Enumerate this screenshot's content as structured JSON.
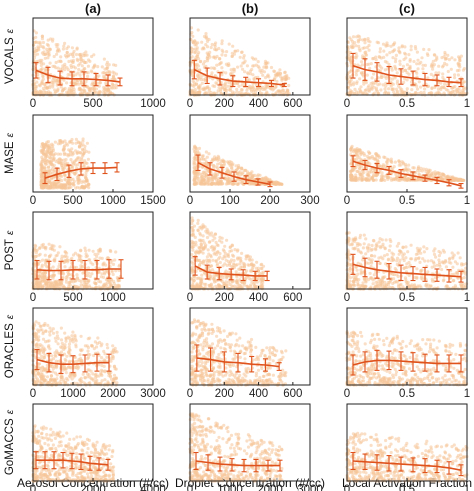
{
  "figure": {
    "column_titles": [
      "(a)",
      "(b)",
      "(c)"
    ],
    "xlabels": [
      "Aerosol Concentration (#/cc)",
      "Droplet Concentration (#/cc)",
      "Local Activation Fraction"
    ],
    "row_labels": [
      "VOCALS",
      "MASE",
      "POST",
      "ORACLES",
      "GoMACCS"
    ],
    "ylabel_symbol": "ε"
  },
  "colors": {
    "scatter": "#f6c597",
    "line": "#e0521c",
    "axis": "#222222"
  },
  "chart_data": [
    {
      "type": "scatter",
      "row": "VOCALS",
      "column": "(a)",
      "xlim": [
        0,
        1000
      ],
      "xticks": [
        0,
        500,
        1000
      ],
      "ylim": [
        0,
        1
      ],
      "scatter_region": {
        "x": [
          0,
          700
        ],
        "y_low_at_start": 0.0,
        "y_high_at_start": 0.85,
        "y_high_at_end": 0.4
      },
      "series": {
        "x": [
          25,
          125,
          225,
          325,
          425,
          525,
          625,
          725
        ],
        "y": [
          0.32,
          0.26,
          0.22,
          0.21,
          0.21,
          0.2,
          0.19,
          0.17
        ],
        "err": [
          0.1,
          0.1,
          0.09,
          0.09,
          0.09,
          0.08,
          0.07,
          0.05
        ]
      }
    },
    {
      "type": "scatter",
      "row": "VOCALS",
      "column": "(b)",
      "xlim": [
        0,
        700
      ],
      "xticks": [
        0,
        200,
        400,
        600
      ],
      "ylim": [
        0,
        1
      ],
      "scatter_region": {
        "x": [
          0,
          580
        ],
        "y_low_at_start": 0.0,
        "y_high_at_start": 0.9,
        "y_high_at_end": 0.3
      },
      "series": {
        "x": [
          25,
          100,
          175,
          250,
          325,
          400,
          475,
          550
        ],
        "y": [
          0.33,
          0.25,
          0.21,
          0.18,
          0.17,
          0.16,
          0.15,
          0.13
        ],
        "err": [
          0.12,
          0.1,
          0.08,
          0.07,
          0.06,
          0.05,
          0.04,
          0.02
        ]
      }
    },
    {
      "type": "scatter",
      "row": "VOCALS",
      "column": "(c)",
      "xlim": [
        0,
        1
      ],
      "xticks": [
        0,
        0.5,
        1
      ],
      "ylim": [
        0,
        1
      ],
      "scatter_region": {
        "x": [
          0,
          1
        ],
        "y_low_at_start": 0.0,
        "y_high_at_start": 0.8,
        "y_high_at_end": 0.5
      },
      "series": {
        "x": [
          0.05,
          0.15,
          0.25,
          0.35,
          0.45,
          0.55,
          0.65,
          0.75,
          0.85,
          0.95
        ],
        "y": [
          0.38,
          0.33,
          0.3,
          0.26,
          0.24,
          0.22,
          0.2,
          0.19,
          0.17,
          0.16
        ],
        "err": [
          0.16,
          0.14,
          0.12,
          0.11,
          0.1,
          0.09,
          0.08,
          0.07,
          0.06,
          0.05
        ]
      }
    },
    {
      "type": "scatter",
      "row": "MASE",
      "column": "(a)",
      "xlim": [
        0,
        1500
      ],
      "xticks": [
        0,
        500,
        1000,
        1500
      ],
      "ylim": [
        0,
        1
      ],
      "scatter_region": {
        "x": [
          100,
          700
        ],
        "y_low_at_start": 0.05,
        "y_high_at_start": 0.65,
        "y_high_at_end": 0.7
      },
      "series": {
        "x": [
          150,
          300,
          450,
          600,
          750,
          900,
          1050
        ],
        "y": [
          0.18,
          0.23,
          0.27,
          0.3,
          0.31,
          0.31,
          0.32
        ],
        "err": [
          0.07,
          0.08,
          0.08,
          0.08,
          0.07,
          0.07,
          0.06
        ]
      }
    },
    {
      "type": "scatter",
      "row": "MASE",
      "column": "(b)",
      "xlim": [
        0,
        300
      ],
      "xticks": [
        0,
        100,
        200,
        300
      ],
      "ylim": [
        0,
        1
      ],
      "scatter_region": {
        "x": [
          10,
          230
        ],
        "y_low_at_start": 0.1,
        "y_high_at_start": 0.6,
        "y_high_at_end": 0.1
      },
      "series": {
        "x": [
          20,
          50,
          80,
          110,
          140,
          170,
          200
        ],
        "y": [
          0.38,
          0.3,
          0.25,
          0.2,
          0.16,
          0.13,
          0.1
        ],
        "err": [
          0.1,
          0.08,
          0.07,
          0.06,
          0.05,
          0.04,
          0.03
        ]
      }
    },
    {
      "type": "scatter",
      "row": "MASE",
      "column": "(c)",
      "xlim": [
        0,
        1
      ],
      "xticks": [
        0,
        0.5,
        1
      ],
      "ylim": [
        0,
        1
      ],
      "scatter_region": {
        "x": [
          0.03,
          0.98
        ],
        "y_low_at_start": 0.15,
        "y_high_at_start": 0.6,
        "y_high_at_end": 0.15
      },
      "series": {
        "x": [
          0.05,
          0.15,
          0.25,
          0.35,
          0.45,
          0.55,
          0.65,
          0.75,
          0.85,
          0.95
        ],
        "y": [
          0.4,
          0.35,
          0.31,
          0.28,
          0.24,
          0.21,
          0.18,
          0.15,
          0.12,
          0.08
        ],
        "err": [
          0.07,
          0.06,
          0.06,
          0.05,
          0.05,
          0.05,
          0.04,
          0.04,
          0.04,
          0.03
        ]
      }
    },
    {
      "type": "scatter",
      "row": "POST",
      "column": "(a)",
      "xlim": [
        0,
        1500
      ],
      "xticks": [
        0,
        500,
        1000
      ],
      "ylim": [
        0,
        1
      ],
      "scatter_region": {
        "x": [
          0,
          1100
        ],
        "y_low_at_start": 0.0,
        "y_high_at_start": 0.6,
        "y_high_at_end": 0.5
      },
      "series": {
        "x": [
          50,
          200,
          350,
          500,
          650,
          800,
          950,
          1100
        ],
        "y": [
          0.25,
          0.24,
          0.24,
          0.25,
          0.25,
          0.25,
          0.26,
          0.26
        ],
        "err": [
          0.12,
          0.12,
          0.12,
          0.12,
          0.12,
          0.12,
          0.12,
          0.12
        ]
      }
    },
    {
      "type": "scatter",
      "row": "POST",
      "column": "(b)",
      "xlim": [
        0,
        700
      ],
      "xticks": [
        0,
        200,
        400,
        600
      ],
      "ylim": [
        0,
        1
      ],
      "scatter_region": {
        "x": [
          10,
          430
        ],
        "y_low_at_start": 0.0,
        "y_high_at_start": 0.95,
        "y_high_at_end": 0.3
      },
      "series": {
        "x": [
          30,
          100,
          170,
          240,
          310,
          380,
          450
        ],
        "y": [
          0.3,
          0.22,
          0.2,
          0.19,
          0.18,
          0.17,
          0.17
        ],
        "err": [
          0.12,
          0.09,
          0.08,
          0.07,
          0.07,
          0.06,
          0.06
        ]
      }
    },
    {
      "type": "scatter",
      "row": "POST",
      "column": "(c)",
      "xlim": [
        0,
        1
      ],
      "xticks": [
        0,
        0.5,
        1
      ],
      "ylim": [
        0,
        1
      ],
      "scatter_region": {
        "x": [
          0,
          1
        ],
        "y_low_at_start": 0.0,
        "y_high_at_start": 0.75,
        "y_high_at_end": 0.45
      },
      "series": {
        "x": [
          0.05,
          0.15,
          0.25,
          0.35,
          0.45,
          0.55,
          0.65,
          0.75,
          0.85,
          0.95
        ],
        "y": [
          0.32,
          0.28,
          0.25,
          0.23,
          0.21,
          0.2,
          0.19,
          0.18,
          0.17,
          0.16
        ],
        "err": [
          0.13,
          0.12,
          0.11,
          0.1,
          0.1,
          0.09,
          0.09,
          0.08,
          0.08,
          0.07
        ]
      }
    },
    {
      "type": "scatter",
      "row": "ORACLES",
      "column": "(a)",
      "xlim": [
        0,
        3000
      ],
      "xticks": [
        0,
        1000,
        2000,
        3000
      ],
      "ylim": [
        0,
        1
      ],
      "scatter_region": {
        "x": [
          0,
          2100
        ],
        "y_low_at_start": 0.0,
        "y_high_at_start": 0.85,
        "y_high_at_end": 0.55
      },
      "series": {
        "x": [
          100,
          400,
          700,
          1000,
          1300,
          1600,
          1900
        ],
        "y": [
          0.33,
          0.29,
          0.27,
          0.27,
          0.28,
          0.29,
          0.29
        ],
        "err": [
          0.13,
          0.12,
          0.12,
          0.11,
          0.11,
          0.11,
          0.11
        ]
      }
    },
    {
      "type": "scatter",
      "row": "ORACLES",
      "column": "(b)",
      "xlim": [
        0,
        700
      ],
      "xticks": [
        0,
        200,
        400,
        600
      ],
      "ylim": [
        0,
        1
      ],
      "scatter_region": {
        "x": [
          10,
          560
        ],
        "y_low_at_start": 0.0,
        "y_high_at_start": 0.9,
        "y_high_at_end": 0.45
      },
      "series": {
        "x": [
          40,
          120,
          200,
          280,
          360,
          440,
          520
        ],
        "y": [
          0.35,
          0.33,
          0.3,
          0.29,
          0.27,
          0.26,
          0.24
        ],
        "err": [
          0.17,
          0.15,
          0.13,
          0.12,
          0.1,
          0.08,
          0.05
        ]
      }
    },
    {
      "type": "scatter",
      "row": "ORACLES",
      "column": "(c)",
      "xlim": [
        0,
        1
      ],
      "xticks": [
        0,
        0.5,
        1
      ],
      "ylim": [
        0,
        1
      ],
      "scatter_region": {
        "x": [
          0,
          1
        ],
        "y_low_at_start": 0.0,
        "y_high_at_start": 0.7,
        "y_high_at_end": 0.55
      },
      "series": {
        "x": [
          0.05,
          0.15,
          0.25,
          0.35,
          0.45,
          0.55,
          0.65,
          0.75,
          0.85,
          0.95
        ],
        "y": [
          0.26,
          0.3,
          0.32,
          0.32,
          0.31,
          0.3,
          0.29,
          0.28,
          0.28,
          0.28
        ],
        "err": [
          0.13,
          0.13,
          0.13,
          0.12,
          0.12,
          0.12,
          0.11,
          0.11,
          0.11,
          0.11
        ]
      }
    },
    {
      "type": "scatter",
      "row": "GoMACCS",
      "column": "(a)",
      "xlim": [
        0,
        4000
      ],
      "xticks": [
        0,
        2000,
        4000
      ],
      "ylim": [
        0,
        1
      ],
      "scatter_region": {
        "x": [
          0,
          2700
        ],
        "y_low_at_start": 0.0,
        "y_high_at_start": 0.75,
        "y_high_at_end": 0.45
      },
      "series": {
        "x": [
          100,
          400,
          700,
          1000,
          1300,
          1600,
          1900,
          2200,
          2500
        ],
        "y": [
          0.27,
          0.27,
          0.27,
          0.27,
          0.26,
          0.25,
          0.23,
          0.22,
          0.21
        ],
        "err": [
          0.11,
          0.11,
          0.11,
          0.1,
          0.1,
          0.1,
          0.09,
          0.08,
          0.07
        ]
      }
    },
    {
      "type": "scatter",
      "row": "GoMACCS",
      "column": "(b)",
      "xlim": [
        0,
        3000
      ],
      "xticks": [
        0,
        1000,
        2000,
        3000
      ],
      "ylim": [
        0,
        1
      ],
      "scatter_region": {
        "x": [
          0,
          2300
        ],
        "y_low_at_start": 0.0,
        "y_high_at_start": 0.9,
        "y_high_at_end": 0.45
      },
      "series": {
        "x": [
          150,
          450,
          750,
          1050,
          1350,
          1650,
          1950,
          2250
        ],
        "y": [
          0.26,
          0.24,
          0.22,
          0.21,
          0.2,
          0.2,
          0.2,
          0.2
        ],
        "err": [
          0.11,
          0.1,
          0.09,
          0.08,
          0.08,
          0.08,
          0.07,
          0.07
        ]
      }
    },
    {
      "type": "scatter",
      "row": "GoMACCS",
      "column": "(c)",
      "xlim": [
        0,
        1
      ],
      "xticks": [
        0,
        0.5,
        1
      ],
      "ylim": [
        0,
        1
      ],
      "scatter_region": {
        "x": [
          0,
          1
        ],
        "y_low_at_start": 0.0,
        "y_high_at_start": 0.65,
        "y_high_at_end": 0.45
      },
      "series": {
        "x": [
          0.05,
          0.15,
          0.25,
          0.35,
          0.45,
          0.55,
          0.65,
          0.75,
          0.85,
          0.95
        ],
        "y": [
          0.26,
          0.25,
          0.24,
          0.23,
          0.22,
          0.21,
          0.2,
          0.19,
          0.17,
          0.14
        ],
        "err": [
          0.11,
          0.1,
          0.1,
          0.1,
          0.09,
          0.09,
          0.09,
          0.08,
          0.08,
          0.07
        ]
      }
    }
  ]
}
